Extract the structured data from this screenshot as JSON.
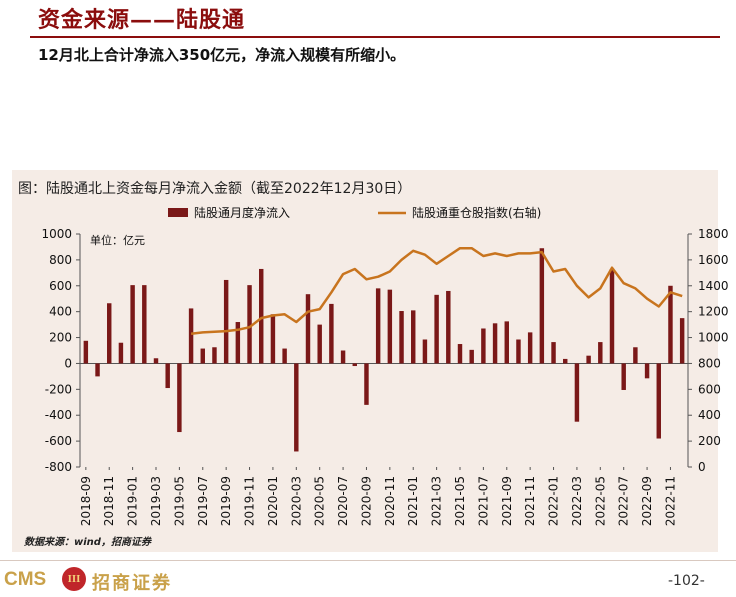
{
  "header": {
    "title": "资金来源——陆股通",
    "subtitle": "12月北上合计净流入350亿元，净流入规模有所缩小。"
  },
  "figure": {
    "caption": "图：陆股通北上资金每月净流入金额（截至2022年12月30日）",
    "unit_note": "单位：亿元",
    "source": "数据来源：wind，招商证券"
  },
  "footer": {
    "logo_text": "CMS",
    "logo_badge": "III",
    "logo_cn": "招商证券",
    "page_number": "-102-"
  },
  "colors": {
    "bar": "#7a1818",
    "line": "#c8741e",
    "accent": "#8b0d0d",
    "background": "#f5ece6"
  },
  "chart_data": {
    "type": "bar",
    "combo": "bar + line (dual y-axis)",
    "x_tick_labels": [
      "2018-09",
      "2018-11",
      "2019-01",
      "2019-03",
      "2019-05",
      "2019-07",
      "2019-09",
      "2019-11",
      "2020-01",
      "2020-03",
      "2020-05",
      "2020-07",
      "2020-09",
      "2020-11",
      "2021-01",
      "2021-03",
      "2021-05",
      "2021-07",
      "2021-09",
      "2021-11",
      "2022-01",
      "2022-03",
      "2022-05",
      "2022-07",
      "2022-09",
      "2022-11"
    ],
    "categories": [
      "2018-09",
      "2018-10",
      "2018-11",
      "2018-12",
      "2019-01",
      "2019-02",
      "2019-03",
      "2019-04",
      "2019-05",
      "2019-06",
      "2019-07",
      "2019-08",
      "2019-09",
      "2019-10",
      "2019-11",
      "2019-12",
      "2020-01",
      "2020-02",
      "2020-03",
      "2020-04",
      "2020-05",
      "2020-06",
      "2020-07",
      "2020-08",
      "2020-09",
      "2020-10",
      "2020-11",
      "2020-12",
      "2021-01",
      "2021-02",
      "2021-03",
      "2021-04",
      "2021-05",
      "2021-06",
      "2021-07",
      "2021-08",
      "2021-09",
      "2021-10",
      "2021-11",
      "2021-12",
      "2022-01",
      "2022-02",
      "2022-03",
      "2022-04",
      "2022-05",
      "2022-06",
      "2022-07",
      "2022-08",
      "2022-09",
      "2022-10",
      "2022-11",
      "2022-12"
    ],
    "legend_position": "top",
    "series": [
      {
        "name": "陆股通月度净流入",
        "type": "bar",
        "axis": "left",
        "values": [
          175,
          -100,
          465,
          160,
          605,
          605,
          40,
          -190,
          -530,
          425,
          115,
          125,
          645,
          320,
          605,
          730,
          380,
          115,
          -680,
          535,
          300,
          460,
          100,
          -20,
          -320,
          580,
          570,
          405,
          410,
          185,
          530,
          560,
          150,
          105,
          270,
          310,
          325,
          185,
          240,
          890,
          165,
          35,
          -450,
          60,
          165,
          730,
          -205,
          125,
          -115,
          -580,
          600,
          350
        ]
      },
      {
        "name": "陆股通重仓股指数(右轴)",
        "type": "line",
        "axis": "right",
        "values": [
          null,
          null,
          null,
          null,
          null,
          null,
          null,
          null,
          null,
          1030,
          1040,
          1045,
          1050,
          1060,
          1080,
          1150,
          1170,
          1180,
          1120,
          1200,
          1220,
          1350,
          1490,
          1530,
          1450,
          1470,
          1510,
          1600,
          1670,
          1640,
          1570,
          1630,
          1690,
          1690,
          1630,
          1650,
          1630,
          1650,
          1650,
          1660,
          1510,
          1530,
          1400,
          1310,
          1380,
          1540,
          1420,
          1380,
          1300,
          1240,
          1350,
          1320
        ]
      }
    ],
    "y_left": {
      "ticks": [
        -800,
        -600,
        -400,
        -200,
        0,
        200,
        400,
        600,
        800,
        1000
      ],
      "range": [
        -800,
        1000
      ]
    },
    "y_right": {
      "ticks": [
        0,
        200,
        400,
        600,
        800,
        1000,
        1200,
        1400,
        1600,
        1800
      ],
      "range": [
        0,
        1800
      ]
    },
    "grid": false
  }
}
